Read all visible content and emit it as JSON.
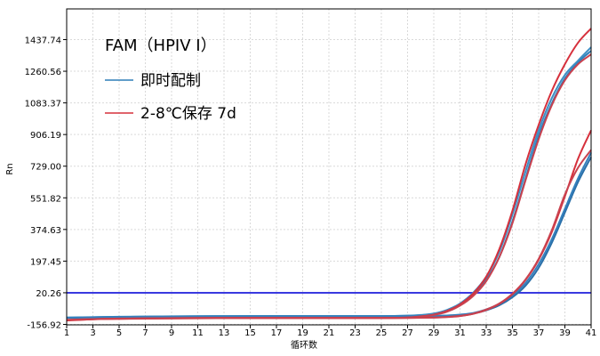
{
  "chart_data": {
    "type": "line",
    "title": "FAM（HPIV I）",
    "xlabel": "循环数",
    "ylabel": "Rn",
    "y_ticks": [
      "1437.74",
      "1260.56",
      "1083.37",
      "906.19",
      "729.00",
      "551.82",
      "374.63",
      "197.45",
      "20.26",
      "-156.92"
    ],
    "x_ticks": [
      "1",
      "3",
      "5",
      "7",
      "9",
      "11",
      "13",
      "15",
      "17",
      "19",
      "21",
      "23",
      "25",
      "27",
      "29",
      "31",
      "33",
      "35",
      "37",
      "39",
      "41"
    ],
    "xlim": [
      1,
      41
    ],
    "ylim": [
      -156.92,
      1615
    ],
    "grid": true,
    "legend_position": "top-left",
    "threshold": {
      "value": 20.26,
      "color": "#3a3ae0"
    },
    "series": [
      {
        "name": "即时配制",
        "color": "#2f7fb8"
      },
      {
        "name": "2-8℃保存 7d",
        "color": "#d6303c"
      }
    ],
    "curves": [
      {
        "series": "即时配制",
        "color": "#2f7fb8",
        "x": [
          1,
          5,
          10,
          15,
          20,
          25,
          27,
          28,
          29,
          30,
          31,
          32,
          33,
          34,
          35,
          36,
          37,
          38,
          39,
          40,
          41
        ],
        "y": [
          -120,
          -115,
          -112,
          -110,
          -110,
          -110,
          -108,
          -105,
          -98,
          -80,
          -45,
          10,
          95,
          220,
          420,
          660,
          900,
          1080,
          1220,
          1310,
          1375
        ]
      },
      {
        "series": "即时配制",
        "color": "#3d8ec4",
        "x": [
          1,
          5,
          10,
          15,
          20,
          25,
          27,
          28,
          29,
          30,
          31,
          32,
          33,
          34,
          35,
          36,
          37,
          38,
          39,
          40,
          41
        ],
        "y": [
          -118,
          -114,
          -111,
          -110,
          -110,
          -110,
          -108,
          -104,
          -96,
          -76,
          -40,
          20,
          110,
          250,
          460,
          700,
          930,
          1110,
          1240,
          1320,
          1395
        ]
      },
      {
        "series": "即时配制",
        "color": "#2a6fa8",
        "x": [
          1,
          5,
          10,
          15,
          20,
          25,
          27,
          29,
          30,
          31,
          32,
          33,
          34,
          35,
          36,
          37,
          38,
          39,
          40,
          41
        ],
        "y": [
          -120,
          -116,
          -113,
          -112,
          -112,
          -112,
          -111,
          -110,
          -108,
          -104,
          -96,
          -78,
          -50,
          -5,
          60,
          160,
          300,
          470,
          640,
          780
        ]
      },
      {
        "series": "即时配制",
        "color": "#3580bd",
        "x": [
          1,
          5,
          10,
          15,
          20,
          25,
          27,
          29,
          30,
          31,
          32,
          33,
          34,
          35,
          36,
          37,
          38,
          39,
          40,
          41
        ],
        "y": [
          -119,
          -115,
          -112,
          -111,
          -111,
          -111,
          -110,
          -109,
          -107,
          -102,
          -93,
          -73,
          -43,
          5,
          75,
          180,
          320,
          490,
          660,
          805
        ]
      },
      {
        "series": "2-8℃保存 7d",
        "color": "#d6303c",
        "x": [
          1,
          3,
          5,
          10,
          15,
          20,
          25,
          27,
          28,
          29,
          30,
          31,
          32,
          33,
          34,
          35,
          36,
          37,
          38,
          39,
          40,
          41
        ],
        "y": [
          -135,
          -128,
          -125,
          -122,
          -120,
          -120,
          -120,
          -118,
          -112,
          -102,
          -82,
          -45,
          15,
          110,
          265,
          480,
          740,
          960,
          1150,
          1300,
          1420,
          1500
        ]
      },
      {
        "series": "2-8℃保存 7d",
        "color": "#c9424f",
        "x": [
          1,
          3,
          5,
          10,
          15,
          20,
          25,
          27,
          28,
          29,
          30,
          31,
          32,
          33,
          34,
          35,
          36,
          37,
          38,
          39,
          40,
          41
        ],
        "y": [
          -132,
          -127,
          -124,
          -121,
          -120,
          -120,
          -120,
          -118,
          -113,
          -104,
          -86,
          -52,
          2,
          85,
          220,
          410,
          650,
          880,
          1070,
          1210,
          1300,
          1355
        ]
      },
      {
        "series": "2-8℃保存 7d",
        "color": "#d6303c",
        "x": [
          1,
          3,
          5,
          10,
          15,
          20,
          25,
          27,
          29,
          30,
          31,
          32,
          33,
          34,
          35,
          36,
          37,
          38,
          39,
          40,
          41
        ],
        "y": [
          -134,
          -128,
          -126,
          -123,
          -122,
          -122,
          -122,
          -121,
          -119,
          -116,
          -110,
          -98,
          -76,
          -42,
          12,
          92,
          205,
          360,
          560,
          770,
          930
        ]
      },
      {
        "series": "2-8℃保存 7d",
        "color": "#c9424f",
        "x": [
          1,
          3,
          5,
          10,
          15,
          20,
          25,
          27,
          29,
          30,
          31,
          32,
          33,
          34,
          35,
          36,
          37,
          38,
          39,
          40,
          41
        ],
        "y": [
          -131,
          -127,
          -125,
          -122,
          -121,
          -121,
          -121,
          -120,
          -118,
          -115,
          -109,
          -97,
          -74,
          -40,
          15,
          95,
          210,
          370,
          570,
          720,
          820
        ]
      }
    ]
  }
}
